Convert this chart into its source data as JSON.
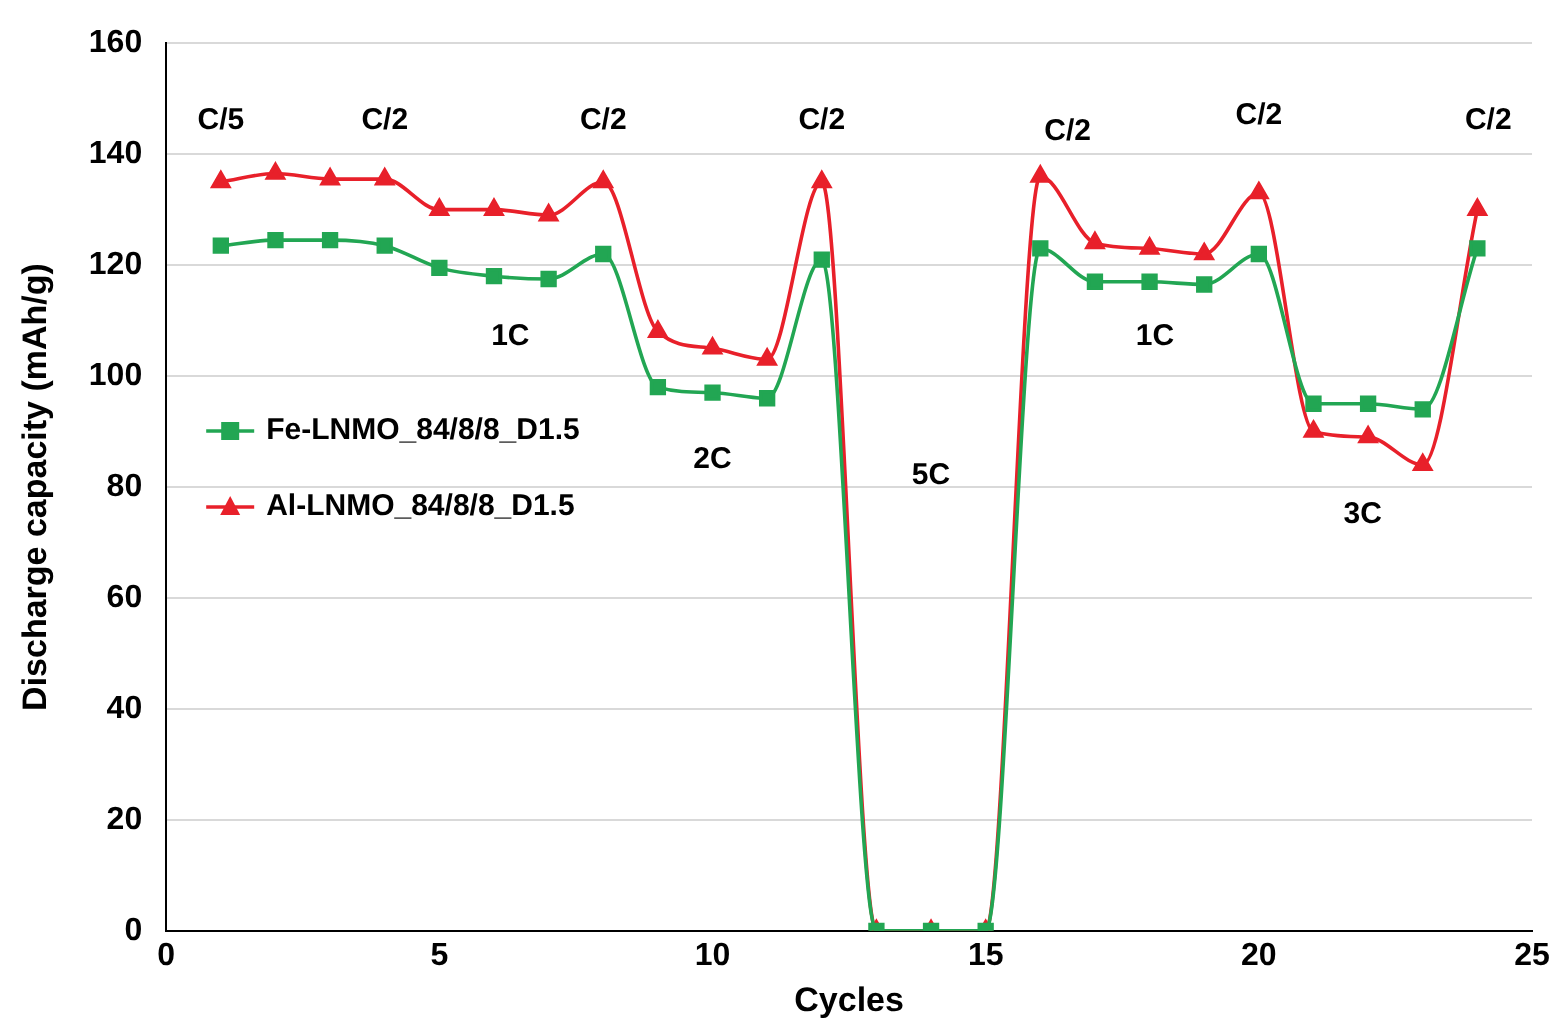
{
  "chart_data": {
    "type": "line",
    "xlabel": "Cycles",
    "ylabel": "Discharge capacity (mAh/g)",
    "x": [
      1,
      2,
      3,
      4,
      5,
      6,
      7,
      8,
      9,
      10,
      11,
      12,
      13,
      14,
      15,
      16,
      17,
      18,
      19,
      20,
      21,
      22,
      23,
      24
    ],
    "series": [
      {
        "name": "Fe-LNMO_84/8/8_D1.5",
        "color": "#22a653",
        "marker": "square",
        "values": [
          123.5,
          124.5,
          124.5,
          123.5,
          119.5,
          118,
          117.5,
          122,
          98,
          97,
          96,
          121,
          0,
          0,
          0,
          123,
          117,
          117,
          116.5,
          122,
          95,
          95,
          94,
          123
        ]
      },
      {
        "name": "Al-LNMO_84/8/8_D1.5",
        "color": "#e8202a",
        "marker": "triangle",
        "values": [
          135,
          136.5,
          135.5,
          135.5,
          130,
          130,
          129,
          135,
          108,
          105,
          103,
          135,
          0,
          0,
          0,
          136,
          124,
          123,
          122,
          133,
          90,
          89,
          84,
          130
        ]
      }
    ],
    "xlim": [
      0,
      25
    ],
    "xticks": [
      0,
      5,
      10,
      15,
      20,
      25
    ],
    "ylim": [
      0,
      160
    ],
    "yticks": [
      0,
      20,
      40,
      60,
      80,
      100,
      120,
      140,
      160
    ],
    "grid": "y",
    "legend": "left",
    "line_style": "solid",
    "annotations": [
      "C/5",
      "C/2",
      "1C",
      "C/2",
      "2C",
      "C/2",
      "5C",
      "C/2",
      "1C",
      "C/2",
      "3C",
      "C/2"
    ]
  }
}
